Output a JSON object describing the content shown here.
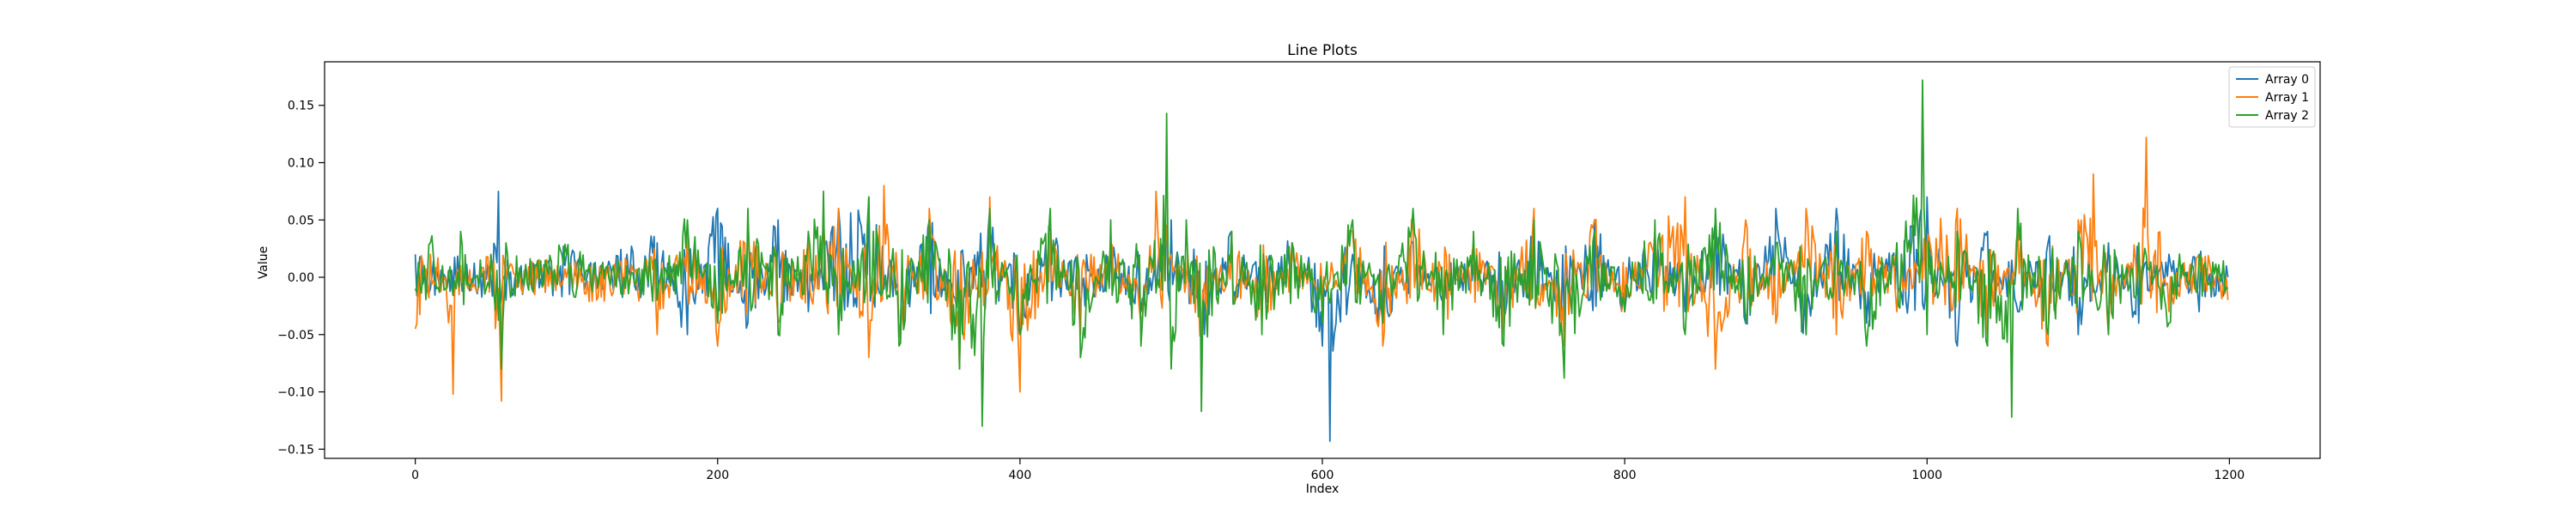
{
  "chart_data": {
    "type": "line",
    "title": "Line Plots",
    "xlabel": "Index",
    "ylabel": "Value",
    "xlim": [
      -60,
      1260
    ],
    "ylim": [
      -0.158,
      0.188
    ],
    "x_ticks": [
      0,
      200,
      400,
      600,
      800,
      1000,
      1200
    ],
    "y_ticks": [
      -0.15,
      -0.1,
      -0.05,
      0.0,
      0.05,
      0.1,
      0.15
    ],
    "x_tick_labels": [
      "0",
      "200",
      "400",
      "600",
      "800",
      "1000",
      "1200"
    ],
    "y_tick_labels": [
      "−0.15",
      "−0.10",
      "−0.05",
      "0.00",
      "0.05",
      "0.10",
      "0.15"
    ],
    "grid": false,
    "legend_position": "upper right",
    "n_points": 1200,
    "series": [
      {
        "name": "Array 0",
        "color": "#1f77b4",
        "x": [
          0,
          10,
          20,
          30,
          40,
          50,
          55,
          60,
          70,
          80,
          100,
          120,
          140,
          160,
          180,
          200,
          220,
          240,
          260,
          280,
          300,
          320,
          340,
          360,
          380,
          400,
          420,
          440,
          460,
          480,
          500,
          520,
          540,
          560,
          580,
          600,
          605,
          620,
          640,
          660,
          680,
          700,
          720,
          740,
          760,
          780,
          800,
          820,
          840,
          860,
          880,
          900,
          920,
          940,
          960,
          980,
          1000,
          1020,
          1040,
          1060,
          1080,
          1100,
          1120,
          1140,
          1160,
          1180,
          1199
        ],
        "values": [
          0.02,
          -0.01,
          0.0,
          0.01,
          -0.01,
          0.0,
          0.075,
          -0.02,
          0.01,
          0.0,
          0.02,
          -0.01,
          0.02,
          0.03,
          -0.05,
          0.06,
          -0.04,
          0.05,
          -0.03,
          0.06,
          0.07,
          -0.05,
          0.05,
          -0.04,
          0.06,
          -0.05,
          0.04,
          -0.03,
          0.02,
          -0.03,
          0.05,
          -0.06,
          0.04,
          -0.03,
          0.03,
          -0.06,
          -0.143,
          0.02,
          -0.04,
          0.03,
          -0.02,
          0.01,
          -0.03,
          0.05,
          -0.04,
          0.05,
          -0.03,
          0.04,
          -0.03,
          0.05,
          -0.04,
          0.06,
          -0.05,
          0.06,
          -0.04,
          0.03,
          0.07,
          -0.06,
          0.04,
          -0.03,
          0.03,
          -0.05,
          0.03,
          -0.04,
          0.02,
          -0.03,
          0.0
        ]
      },
      {
        "name": "Array 1",
        "color": "#ff7f0e",
        "x": [
          0,
          10,
          20,
          25,
          30,
          40,
          50,
          57,
          60,
          70,
          80,
          100,
          120,
          140,
          160,
          180,
          200,
          220,
          240,
          260,
          280,
          300,
          310,
          320,
          340,
          360,
          380,
          400,
          420,
          440,
          460,
          480,
          490,
          500,
          520,
          540,
          560,
          580,
          600,
          620,
          640,
          660,
          680,
          700,
          720,
          740,
          760,
          780,
          800,
          820,
          840,
          860,
          880,
          900,
          920,
          940,
          960,
          980,
          1000,
          1020,
          1040,
          1060,
          1080,
          1100,
          1110,
          1120,
          1140,
          1145,
          1160,
          1180,
          1199
        ],
        "values": [
          -0.045,
          0.02,
          0.0,
          -0.102,
          0.01,
          -0.01,
          0.02,
          -0.108,
          0.0,
          -0.01,
          0.01,
          0.0,
          -0.02,
          0.01,
          -0.05,
          0.04,
          -0.06,
          0.05,
          -0.04,
          0.03,
          0.06,
          -0.07,
          0.08,
          -0.05,
          0.06,
          -0.08,
          0.07,
          -0.1,
          0.04,
          -0.05,
          0.03,
          -0.04,
          0.075,
          0.02,
          -0.05,
          0.04,
          -0.04,
          0.03,
          -0.02,
          0.04,
          -0.06,
          0.05,
          -0.04,
          0.03,
          -0.05,
          0.06,
          -0.06,
          0.05,
          -0.03,
          0.04,
          0.07,
          -0.08,
          0.05,
          -0.04,
          0.06,
          -0.05,
          0.04,
          -0.03,
          0.03,
          0.06,
          -0.05,
          0.04,
          -0.06,
          0.05,
          0.09,
          -0.05,
          0.03,
          0.122,
          -0.03,
          0.02,
          -0.02
        ]
      },
      {
        "name": "Array 2",
        "color": "#2ca02c",
        "x": [
          0,
          10,
          20,
          30,
          40,
          50,
          57,
          60,
          70,
          80,
          100,
          120,
          140,
          160,
          180,
          200,
          220,
          240,
          260,
          270,
          280,
          300,
          320,
          340,
          360,
          375,
          380,
          400,
          420,
          440,
          460,
          480,
          497,
          500,
          510,
          520,
          540,
          560,
          580,
          600,
          620,
          640,
          660,
          680,
          700,
          720,
          740,
          760,
          780,
          800,
          820,
          840,
          860,
          880,
          900,
          920,
          940,
          960,
          980,
          997,
          1000,
          1020,
          1040,
          1056,
          1060,
          1080,
          1100,
          1120,
          1140,
          1160,
          1180,
          1199
        ],
        "values": [
          -0.01,
          0.03,
          -0.01,
          0.04,
          0.0,
          0.02,
          -0.08,
          0.03,
          0.0,
          0.01,
          0.02,
          0.0,
          0.01,
          -0.02,
          0.05,
          -0.04,
          0.06,
          -0.05,
          0.04,
          0.075,
          -0.05,
          0.07,
          -0.06,
          0.05,
          -0.08,
          -0.13,
          0.06,
          -0.05,
          0.06,
          -0.07,
          0.05,
          -0.06,
          0.143,
          -0.08,
          0.05,
          -0.117,
          0.04,
          -0.05,
          0.03,
          -0.04,
          0.05,
          -0.04,
          0.06,
          -0.05,
          0.04,
          -0.06,
          0.05,
          -0.088,
          0.04,
          -0.03,
          0.05,
          -0.05,
          0.06,
          -0.04,
          0.03,
          -0.05,
          0.04,
          -0.06,
          0.03,
          0.172,
          -0.05,
          0.04,
          -0.06,
          -0.122,
          0.06,
          -0.05,
          0.04,
          -0.05,
          0.03,
          -0.04,
          0.02,
          -0.01
        ]
      }
    ]
  }
}
